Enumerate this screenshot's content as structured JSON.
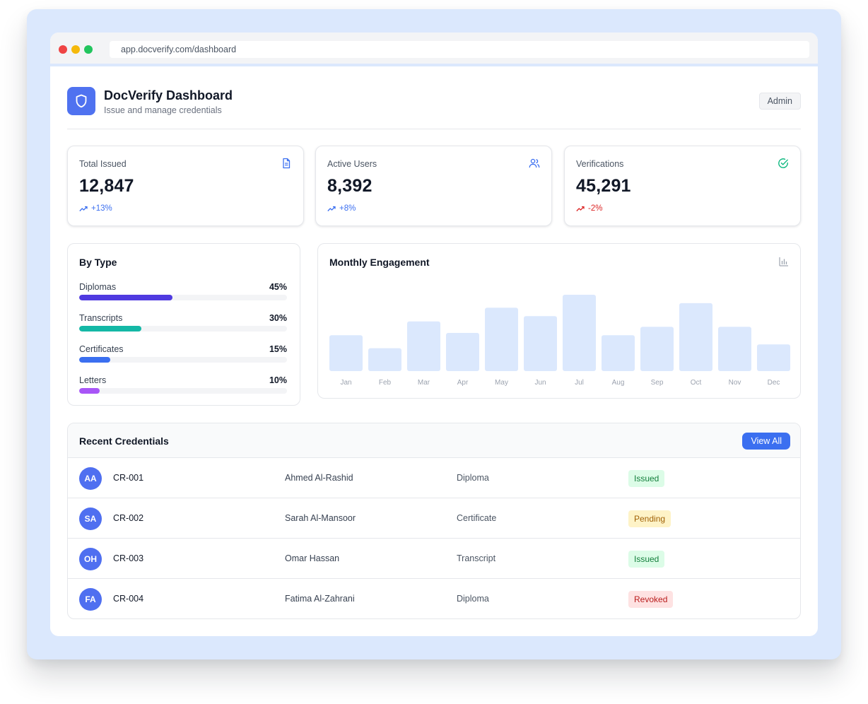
{
  "browser": {
    "url": "app.docverify.com/dashboard"
  },
  "header": {
    "title": "DocVerify Dashboard",
    "subtitle": "Issue and manage credentials",
    "role": "Admin"
  },
  "stats": [
    {
      "label": "Total Issued",
      "value": "12,847",
      "trend": "+13%",
      "direction": "up",
      "icon": "document-icon"
    },
    {
      "label": "Active Users",
      "value": "8,392",
      "trend": "+8%",
      "direction": "up",
      "icon": "users-icon"
    },
    {
      "label": "Verifications",
      "value": "45,291",
      "trend": "-2%",
      "direction": "down",
      "icon": "check-circle-icon"
    }
  ],
  "by_type": {
    "title": "By Type",
    "items": [
      {
        "label": "Diplomas",
        "percent_label": "45%",
        "value": 45,
        "color": "#4f3ae0"
      },
      {
        "label": "Transcripts",
        "percent_label": "30%",
        "value": 30,
        "color": "#14b8a6"
      },
      {
        "label": "Certificates",
        "percent_label": "15%",
        "value": 15,
        "color": "#3b6ff0"
      },
      {
        "label": "Letters",
        "percent_label": "10%",
        "value": 10,
        "color": "#a855f7"
      }
    ]
  },
  "engagement": {
    "title": "Monthly Engagement",
    "icon": "bar-chart-icon"
  },
  "chart_data": {
    "type": "bar",
    "title": "Monthly Engagement",
    "categories": [
      "Jan",
      "Feb",
      "Mar",
      "Apr",
      "May",
      "Jun",
      "Jul",
      "Aug",
      "Sep",
      "Oct",
      "Nov",
      "Dec"
    ],
    "values": [
      47,
      30,
      65,
      50,
      83,
      72,
      100,
      47,
      58,
      89,
      58,
      35
    ],
    "ylim": [
      0,
      100
    ],
    "grid": false,
    "bar_color": "#dbe8fd"
  },
  "recent": {
    "title": "Recent Credentials",
    "view_all_label": "View All",
    "rows": [
      {
        "initials": "AA",
        "id": "CR-001",
        "name": "Ahmed Al-Rashid",
        "type": "Diploma",
        "status": "Issued",
        "status_kind": "issued"
      },
      {
        "initials": "SA",
        "id": "CR-002",
        "name": "Sarah Al-Mansoor",
        "type": "Certificate",
        "status": "Pending",
        "status_kind": "pending"
      },
      {
        "initials": "OH",
        "id": "CR-003",
        "name": "Omar Hassan",
        "type": "Transcript",
        "status": "Issued",
        "status_kind": "issued"
      },
      {
        "initials": "FA",
        "id": "CR-004",
        "name": "Fatima Al-Zahrani",
        "type": "Diploma",
        "status": "Revoked",
        "status_kind": "revoked"
      }
    ]
  }
}
